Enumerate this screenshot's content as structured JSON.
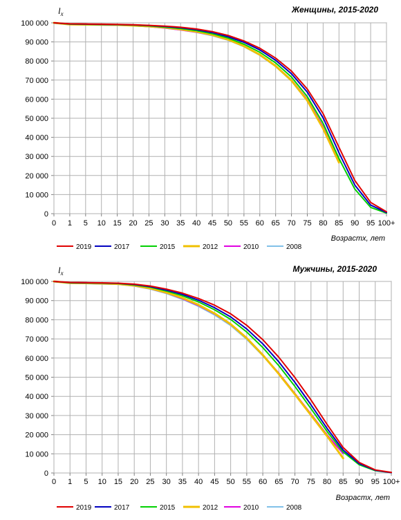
{
  "chart_data": [
    {
      "type": "line",
      "title": "Женщины,  2015-2020",
      "ylabel_main": "l",
      "ylabel_sub": "x",
      "xlabel": "Возрастx, лет",
      "x": [
        "0",
        "1",
        "5",
        "10",
        "15",
        "20",
        "25",
        "30",
        "35",
        "40",
        "45",
        "50",
        "55",
        "60",
        "65",
        "70",
        "75",
        "80",
        "85",
        "90",
        "95",
        "100+"
      ],
      "y_ticks": [
        "0",
        "10 000",
        "20 000",
        "30 000",
        "40 000",
        "50 000",
        "60 000",
        "70 000",
        "80 000",
        "90 000",
        "100 000"
      ],
      "ylim": [
        0,
        100000
      ],
      "grid": true,
      "legend_position": "bottom",
      "series": [
        {
          "name": "2019",
          "color": "#e00000",
          "width": 2,
          "values": [
            100000,
            99500,
            99400,
            99300,
            99200,
            99000,
            98700,
            98300,
            97700,
            96800,
            95400,
            93400,
            90500,
            86700,
            81500,
            74700,
            65300,
            52400,
            34800,
            17400,
            5900,
            1000
          ]
        },
        {
          "name": "2017",
          "color": "#0000c0",
          "width": 2,
          "values": [
            100000,
            99400,
            99300,
            99200,
            99100,
            98900,
            98600,
            98100,
            97400,
            96400,
            94900,
            92700,
            89800,
            85800,
            80400,
            73300,
            63700,
            50200,
            31900,
            15000,
            4500,
            600
          ]
        },
        {
          "name": "2015",
          "color": "#00d000",
          "width": 2,
          "values": [
            100000,
            99300,
            99200,
            99100,
            99000,
            98800,
            98400,
            97800,
            97000,
            95900,
            94300,
            92000,
            88800,
            84600,
            79000,
            71600,
            61300,
            47300,
            28900,
            12900,
            3300,
            300
          ]
        },
        {
          "name": "2012",
          "color": "#f0c000",
          "width": 3,
          "values": [
            100000,
            99200,
            99100,
            99000,
            98900,
            98600,
            98200,
            97600,
            96600,
            95400,
            93700,
            91200,
            87800,
            83300,
            77400,
            69800,
            59300,
            44600,
            26800,
            null,
            null,
            null
          ]
        },
        {
          "name": "2010",
          "color": "#e000e0",
          "width": 2,
          "values": [
            100000,
            99100,
            99000,
            98900,
            98800,
            98500,
            98000,
            97300,
            96300,
            95100,
            93500,
            91100,
            87800,
            83300,
            77500,
            70100,
            59900,
            45600,
            27500,
            null,
            null,
            null
          ]
        },
        {
          "name": "2008",
          "color": "#80c0e8",
          "width": 2,
          "values": [
            100000,
            99100,
            99000,
            98900,
            98800,
            98500,
            98000,
            97300,
            96300,
            95000,
            93300,
            90900,
            87500,
            83000,
            77100,
            69500,
            59000,
            44500,
            26800,
            null,
            null,
            null
          ]
        }
      ]
    },
    {
      "type": "line",
      "title": "Мужчины,  2015-2020",
      "ylabel_main": "l",
      "ylabel_sub": "x",
      "xlabel": "Возрастx, лет",
      "x": [
        "0",
        "1",
        "5",
        "10",
        "15",
        "20",
        "25",
        "30",
        "35",
        "40",
        "45",
        "50",
        "55",
        "60",
        "65",
        "70",
        "75",
        "80",
        "85",
        "90",
        "95",
        "100+"
      ],
      "y_ticks": [
        "0",
        "10 000",
        "20 000",
        "30 000",
        "40 000",
        "50 000",
        "60 000",
        "70 000",
        "80 000",
        "90 000",
        "100 000"
      ],
      "ylim": [
        0,
        100000
      ],
      "grid": true,
      "legend_position": "bottom",
      "series": [
        {
          "name": "2019",
          "color": "#e00000",
          "width": 2,
          "values": [
            100000,
            99500,
            99400,
            99300,
            99100,
            98600,
            97600,
            96000,
            93900,
            91100,
            87600,
            83100,
            77100,
            69600,
            60400,
            49800,
            38100,
            25400,
            13300,
            5500,
            1600,
            300
          ]
        },
        {
          "name": "2017",
          "color": "#0000c0",
          "width": 2,
          "values": [
            100000,
            99400,
            99300,
            99200,
            99000,
            98400,
            97300,
            95500,
            93200,
            90200,
            86300,
            81500,
            75200,
            67400,
            58000,
            47300,
            35600,
            23300,
            12000,
            4900,
            1400,
            200
          ]
        },
        {
          "name": "2015",
          "color": "#00d000",
          "width": 2,
          "values": [
            100000,
            99300,
            99200,
            99100,
            98900,
            98200,
            97000,
            95000,
            92500,
            89300,
            85200,
            80200,
            73600,
            65500,
            56000,
            45200,
            33600,
            21700,
            11000,
            4300,
            1200,
            200
          ]
        },
        {
          "name": "2012",
          "color": "#f0c000",
          "width": 3,
          "values": [
            100000,
            99200,
            99100,
            98900,
            98700,
            97900,
            96400,
            94200,
            91400,
            87800,
            83300,
            77700,
            70400,
            61600,
            51700,
            41100,
            30200,
            19300,
            7700,
            null,
            null,
            null
          ]
        },
        {
          "name": "2010",
          "color": "#e000e0",
          "width": 2,
          "values": [
            100000,
            99100,
            99000,
            98800,
            98600,
            97700,
            96200,
            94000,
            91000,
            87400,
            83000,
            77500,
            70300,
            61600,
            52100,
            41500,
            30800,
            19900,
            10200,
            null,
            null,
            null
          ]
        },
        {
          "name": "2008",
          "color": "#80c0e8",
          "width": 2,
          "values": [
            100000,
            99000,
            98900,
            98700,
            98500,
            97600,
            96000,
            93700,
            90700,
            87000,
            82500,
            77000,
            69800,
            61200,
            51700,
            41300,
            30700,
            19800,
            10100,
            null,
            null,
            null
          ]
        }
      ]
    }
  ]
}
